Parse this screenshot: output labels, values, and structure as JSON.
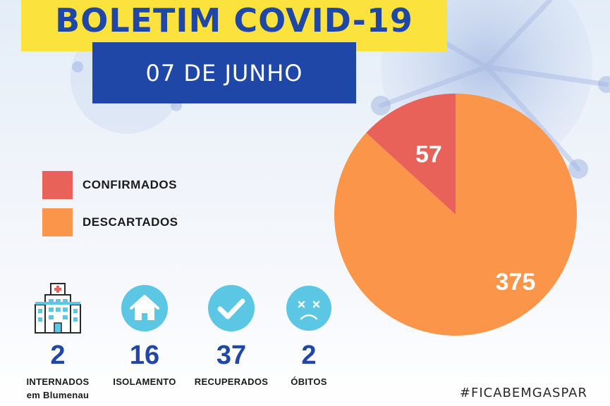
{
  "header": {
    "title": "BOLETIM COVID-19",
    "date": "07 DE JUNHO"
  },
  "colors": {
    "title_band": "#fbe23c",
    "brand_blue": "#1f47a8",
    "confirmados": "#e8625a",
    "descartados": "#fb9549",
    "icon_circle": "#5bc7e5"
  },
  "chart_data": {
    "type": "pie",
    "title": "",
    "slices": [
      {
        "label": "CONFIRMADOS",
        "value": 57,
        "color": "#e8625a"
      },
      {
        "label": "DESCARTADOS",
        "value": 375,
        "color": "#fb9549"
      }
    ],
    "legend_position": "left"
  },
  "stats": [
    {
      "icon": "hospital-icon",
      "value": "2",
      "label": "INTERNADOS",
      "sublabel": "em Blumenau"
    },
    {
      "icon": "house-icon",
      "value": "16",
      "label": "ISOLAMENTO"
    },
    {
      "icon": "checkmark-icon",
      "value": "37",
      "label": "RECUPERADOS"
    },
    {
      "icon": "sad-face-icon",
      "value": "2",
      "label": "ÓBITOS"
    }
  ],
  "footer": {
    "hashtag": "#FICABEMGASPAR"
  }
}
